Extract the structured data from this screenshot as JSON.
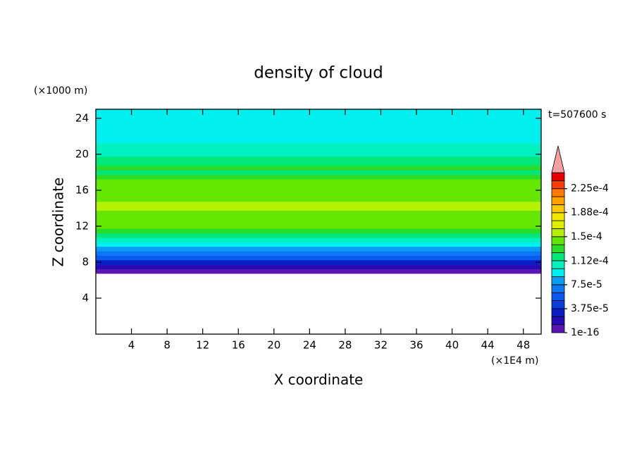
{
  "chart_data": {
    "type": "contour",
    "title": "density of cloud",
    "xlabel": "X coordinate",
    "ylabel": "Z coordinate",
    "x_unit": "(×1E4 m)",
    "y_unit": "(×1000 m)",
    "annotation": "t=507600 s",
    "xlim": [
      0,
      50
    ],
    "ylim": [
      0,
      25
    ],
    "xticks": [
      4,
      8,
      12,
      16,
      20,
      24,
      28,
      32,
      36,
      40,
      44,
      48
    ],
    "yticks": [
      4,
      8,
      12,
      16,
      20,
      24
    ],
    "z": [
      7,
      7.5,
      8,
      8.5,
      9,
      9.5,
      10,
      10.5,
      11,
      11.5,
      12,
      12.5,
      13,
      13.5,
      14,
      14.5,
      15,
      15.5,
      16,
      16.5,
      17,
      17.5,
      18,
      18.5,
      19,
      19.5,
      20,
      20.5,
      21,
      21.5,
      22,
      22.5,
      23,
      23.5,
      24,
      24.5,
      25
    ],
    "values": [
      5e-06,
      2e-05,
      3.5e-05,
      5.5e-05,
      7e-05,
      8e-05,
      9.5e-05,
      0.000105,
      0.000115,
      0.000128,
      0.00014,
      0.000142,
      0.000145,
      0.000148,
      0.000152,
      0.00015,
      0.000146,
      0.000144,
      0.000142,
      0.00014,
      0.000138,
      0.00013,
      0.000124,
      0.000128,
      0.000124,
      0.000118,
      0.00011,
      0.000104,
      0.0001,
      9.8e-05,
      9.4e-05,
      9.3e-05,
      9.2e-05,
      9.2e-05,
      9.2e-05,
      9.1e-05,
      9e-05
    ],
    "colorbar": {
      "levels": [
        1e-16,
        1.25e-05,
        2.5e-05,
        3.75e-05,
        5e-05,
        6.25e-05,
        7.5e-05,
        8.75e-05,
        0.0001,
        0.0001125,
        0.000125,
        0.0001375,
        0.00015,
        0.0001625,
        0.000175,
        0.0001875,
        0.0002,
        0.0002125,
        0.000225,
        0.0002375,
        0.00025
      ],
      "colors": [
        "#5a14b4",
        "#280ab4",
        "#0a1ec8",
        "#0a3cdc",
        "#0a5af0",
        "#0a78f5",
        "#0a9cf5",
        "#00f0f0",
        "#00f0c0",
        "#00e678",
        "#28dc28",
        "#64e600",
        "#b4f000",
        "#dcf000",
        "#f0e600",
        "#ffc800",
        "#ffa000",
        "#ff7800",
        "#ff3c00",
        "#e60000"
      ],
      "extend_color": "#f5a0a0",
      "ticks": [
        1e-16,
        {
          "value": 3.75e-05,
          "label": "3.75e-5"
        },
        {
          "value": 7.5e-05,
          "label": "7.5e-5"
        },
        {
          "value": 0.000112,
          "label": "1.12e-4"
        },
        {
          "value": 0.00015,
          "label": "1.5e-4"
        },
        {
          "value": 0.000188,
          "label": "1.88e-4"
        },
        {
          "value": 0.000225,
          "label": "2.25e-4"
        }
      ]
    }
  }
}
